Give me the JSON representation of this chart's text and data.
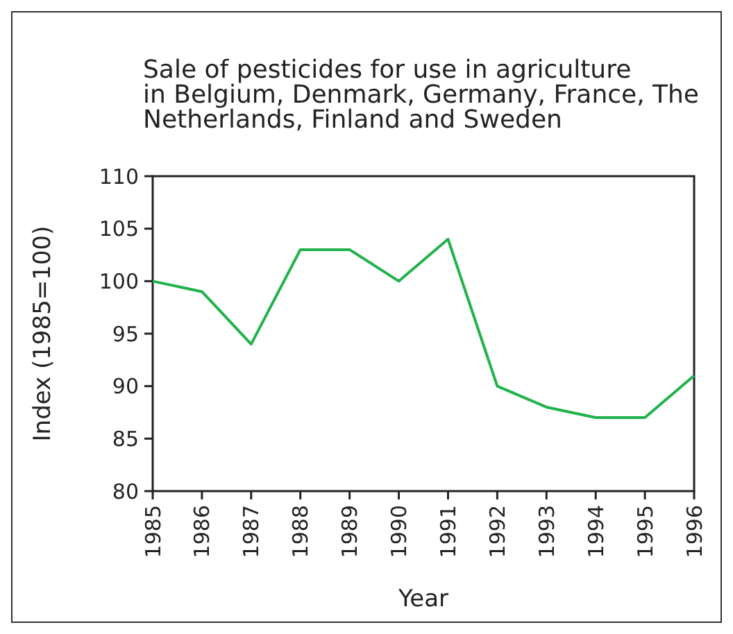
{
  "chart_data": {
    "type": "line",
    "title": "Sale of pesticides for use in agriculture in Belgium, Denmark, Germany, France, The Netherlands, Finland and Sweden",
    "xlabel": "Year",
    "ylabel": "Index (1985=100)",
    "x": [
      1985,
      1986,
      1987,
      1988,
      1989,
      1990,
      1991,
      1992,
      1993,
      1994,
      1995,
      1996
    ],
    "series": [
      {
        "color": "#22b24c",
        "values": [
          100,
          99,
          94,
          103,
          103,
          100,
          104,
          90,
          88,
          87,
          87,
          91
        ]
      }
    ],
    "xlim": [
      1985,
      1996
    ],
    "xticks": [
      1985,
      1986,
      1987,
      1988,
      1989,
      1990,
      1991,
      1992,
      1993,
      1994,
      1995,
      1996
    ],
    "ylim": [
      80,
      110
    ],
    "yticks": [
      80,
      85,
      90,
      95,
      100,
      105,
      110
    ],
    "grid": false,
    "marker": "none",
    "line_style": "solid"
  }
}
